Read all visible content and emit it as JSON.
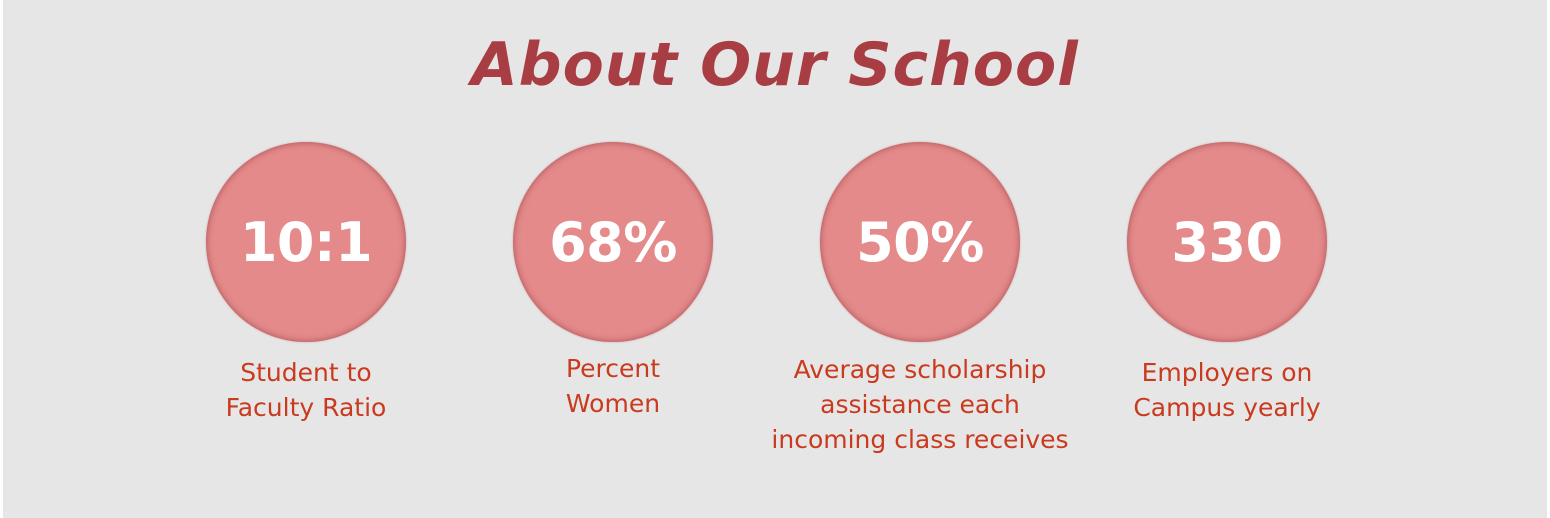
{
  "title": "About Our School",
  "stats": [
    {
      "value": "10:1",
      "caption": "Student to\nFaculty Ratio"
    },
    {
      "value": "68%",
      "caption": "Percent\nWomen"
    },
    {
      "value": "50%",
      "caption": "Average scholarship\nassistance each\nincoming class receives"
    },
    {
      "value": "330",
      "caption": "Employers on\nCampus yearly"
    }
  ],
  "colors": {
    "background": "#e7e6e6",
    "title": "#a83e44",
    "circle": "#e48a8b",
    "value_text": "#ffffff",
    "caption": "#c93a1e"
  }
}
